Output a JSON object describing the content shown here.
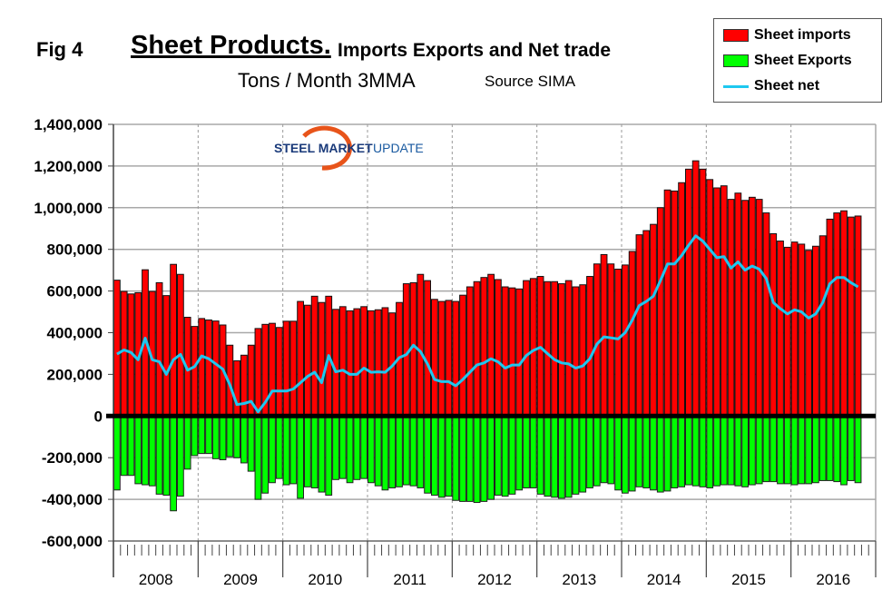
{
  "header": {
    "fig_label": "Fig 4",
    "title": "Sheet Products.",
    "subtitle": "Imports Exports and Net trade",
    "units": "Tons / Month 3MMA",
    "source": "Source SIMA"
  },
  "logo": {
    "text_bold": "STEEL MARKET",
    "text_light": "UPDATE"
  },
  "legend": {
    "items": [
      {
        "label": "Sheet imports",
        "color": "#ff0000",
        "kind": "bar"
      },
      {
        "label": "Sheet Exports",
        "color": "#00ff00",
        "kind": "bar"
      },
      {
        "label": "Sheet net",
        "color": "#1ec8f0",
        "kind": "line"
      }
    ]
  },
  "chart_data": {
    "type": "bar",
    "title": "Sheet Products. Imports Exports and Net trade",
    "subtitle": "Tons / Month 3MMA",
    "xlabel": "",
    "ylabel": "",
    "ylim": [
      -600000,
      1400000
    ],
    "yticks": [
      1400000,
      1200000,
      1000000,
      800000,
      600000,
      400000,
      200000,
      0,
      -200000,
      -400000,
      -600000
    ],
    "ytick_labels": [
      "1,400,000",
      "1,200,000",
      "1,000,000",
      "800,000",
      "600,000",
      "400,000",
      "200,000",
      "0",
      "-200,000",
      "-400,000",
      "-600,000"
    ],
    "year_labels": [
      "2008",
      "2009",
      "2010",
      "2011",
      "2012",
      "2013",
      "2014",
      "2015",
      "2016"
    ],
    "months_per_year": 12,
    "grid": true,
    "legend_position": "top-right",
    "series": [
      {
        "name": "Sheet imports",
        "type": "bar",
        "color": "#ff0000",
        "values": [
          652000,
          598000,
          586000,
          592000,
          702000,
          598000,
          640000,
          578000,
          728000,
          680000,
          474000,
          430000,
          468000,
          461000,
          456000,
          437000,
          340000,
          265000,
          292000,
          340000,
          420000,
          440000,
          445000,
          425000,
          455000,
          455000,
          550000,
          532000,
          575000,
          545000,
          575000,
          512000,
          525000,
          505000,
          515000,
          525000,
          505000,
          510000,
          520000,
          495000,
          545000,
          635000,
          640000,
          680000,
          650000,
          560000,
          550000,
          555000,
          550000,
          580000,
          620000,
          645000,
          665000,
          680000,
          655000,
          620000,
          615000,
          610000,
          650000,
          660000,
          670000,
          645000,
          645000,
          635000,
          650000,
          620000,
          630000,
          670000,
          730000,
          775000,
          730000,
          705000,
          725000,
          790000,
          870000,
          890000,
          920000,
          1000000,
          1085000,
          1080000,
          1120000,
          1185000,
          1225000,
          1185000,
          1135000,
          1095000,
          1105000,
          1040000,
          1070000,
          1035000,
          1050000,
          1040000,
          975000,
          875000,
          840000,
          810000,
          835000,
          825000,
          795000,
          815000,
          865000,
          945000,
          975000,
          985000,
          955000,
          960000
        ]
      },
      {
        "name": "Sheet Exports",
        "type": "bar",
        "color": "#00ff00",
        "values": [
          -355000,
          -285000,
          -285000,
          -325000,
          -330000,
          -335000,
          -375000,
          -380000,
          -455000,
          -385000,
          -255000,
          -190000,
          -180000,
          -180000,
          -205000,
          -210000,
          -195000,
          -200000,
          -225000,
          -265000,
          -400000,
          -370000,
          -320000,
          -300000,
          -330000,
          -325000,
          -395000,
          -340000,
          -345000,
          -365000,
          -380000,
          -305000,
          -300000,
          -320000,
          -305000,
          -300000,
          -320000,
          -335000,
          -355000,
          -345000,
          -340000,
          -330000,
          -335000,
          -345000,
          -370000,
          -380000,
          -390000,
          -385000,
          -405000,
          -410000,
          -410000,
          -415000,
          -410000,
          -400000,
          -380000,
          -385000,
          -375000,
          -355000,
          -345000,
          -345000,
          -375000,
          -385000,
          -390000,
          -395000,
          -390000,
          -375000,
          -365000,
          -345000,
          -335000,
          -320000,
          -325000,
          -355000,
          -370000,
          -360000,
          -340000,
          -345000,
          -355000,
          -365000,
          -360000,
          -345000,
          -340000,
          -330000,
          -335000,
          -340000,
          -345000,
          -335000,
          -330000,
          -330000,
          -335000,
          -340000,
          -330000,
          -325000,
          -315000,
          -315000,
          -325000,
          -325000,
          -330000,
          -325000,
          -325000,
          -320000,
          -310000,
          -310000,
          -315000,
          -330000,
          -310000,
          -320000
        ]
      },
      {
        "name": "Sheet net",
        "type": "line",
        "color": "#1ec8f0",
        "values": [
          297000,
          317000,
          305000,
          270000,
          374000,
          270000,
          260000,
          200000,
          270000,
          296000,
          220000,
          237000,
          288000,
          275000,
          250000,
          225000,
          150000,
          55000,
          60000,
          70000,
          20000,
          65000,
          120000,
          120000,
          120000,
          130000,
          160000,
          190000,
          210000,
          160000,
          290000,
          212000,
          220000,
          200000,
          200000,
          230000,
          210000,
          212000,
          210000,
          240000,
          280000,
          295000,
          340000,
          310000,
          250000,
          175000,
          165000,
          165000,
          145000,
          175000,
          210000,
          245000,
          255000,
          275000,
          260000,
          230000,
          245000,
          245000,
          290000,
          315000,
          330000,
          300000,
          270000,
          255000,
          250000,
          230000,
          240000,
          275000,
          345000,
          380000,
          375000,
          370000,
          400000,
          460000,
          530000,
          550000,
          575000,
          650000,
          730000,
          730000,
          770000,
          820000,
          865000,
          840000,
          800000,
          760000,
          765000,
          710000,
          740000,
          700000,
          720000,
          705000,
          660000,
          545000,
          515000,
          490000,
          510000,
          500000,
          470000,
          490000,
          545000,
          635000,
          665000,
          665000,
          640000,
          620000
        ]
      }
    ]
  }
}
